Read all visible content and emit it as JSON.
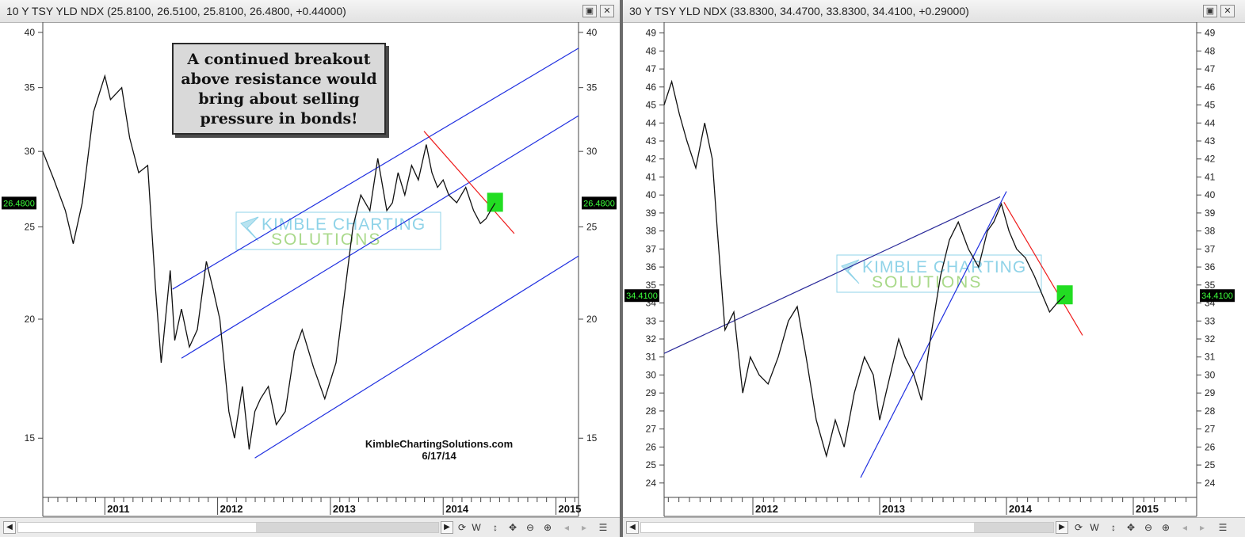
{
  "left_panel": {
    "title": "10 Y TSY YLD NDX",
    "ohlc": "(25.8100, 26.5100, 25.8100, 26.4800, +0.44000)",
    "price_tag": "26.4800",
    "callout_lines": [
      "A continued breakout",
      "above resistance would",
      "bring about selling",
      "pressure in bonds!"
    ],
    "watermark_line1": "KIMBLE CHARTING",
    "watermark_line2": "SOLUTIONS",
    "site": "KimbleChartingSolutions.com",
    "date": "6/17/14",
    "timeframe_label": "W"
  },
  "right_panel": {
    "title": "30 Y TSY YLD NDX",
    "ohlc": "(33.8300, 34.4700, 33.8300, 34.4100, +0.29000)",
    "price_tag": "34.4100",
    "watermark_line1": "KIMBLE CHARTING",
    "watermark_line2": "SOLUTIONS",
    "timeframe_label": "W"
  },
  "colors": {
    "price_line": "#111111",
    "channel": "#1f2fe0",
    "resistance": "#ee1c1c",
    "highlight": "#22dd22",
    "watermark": "#2aa8c8",
    "watermark_green": "#7cc24a"
  },
  "chart_data": [
    {
      "type": "line",
      "title": "10 Y TSY YLD NDX",
      "scale": "log",
      "x_range": [
        2010.45,
        2015.2
      ],
      "ylim": [
        13,
        41
      ],
      "y_ticks": [
        15,
        20,
        25,
        30,
        35,
        40
      ],
      "x_ticks": [
        "2011",
        "2012",
        "2013",
        "2014",
        "2015"
      ],
      "last_value": 26.48,
      "series": [
        {
          "x": [
            2010.45,
            2010.55,
            2010.65,
            2010.72,
            2010.8,
            2010.9,
            2011.0,
            2011.05,
            2011.15,
            2011.22,
            2011.3,
            2011.38,
            2011.45,
            2011.5,
            2011.58,
            2011.62,
            2011.68,
            2011.75,
            2011.82,
            2011.9,
            2011.96,
            2012.02,
            2012.1,
            2012.15,
            2012.22,
            2012.28,
            2012.33,
            2012.38,
            2012.45,
            2012.52,
            2012.6,
            2012.68,
            2012.75,
            2012.85,
            2012.95,
            2013.05,
            2013.12,
            2013.2,
            2013.27,
            2013.35,
            2013.42,
            2013.5,
            2013.55,
            2013.6,
            2013.66,
            2013.72,
            2013.78,
            2013.85,
            2013.9,
            2013.95,
            2014.0,
            2014.05,
            2014.12,
            2014.2,
            2014.27,
            2014.33,
            2014.38,
            2014.42,
            2014.46
          ],
          "y": [
            30,
            28,
            26,
            24,
            26.5,
            33,
            36,
            34,
            35,
            31,
            28.5,
            29,
            21.5,
            18,
            22.5,
            19,
            20.5,
            18.7,
            19.5,
            23,
            21.5,
            20,
            16,
            15,
            17,
            14.6,
            16,
            16.5,
            17,
            15.5,
            16,
            18.5,
            19.5,
            17.8,
            16.5,
            18,
            21,
            25,
            27,
            26,
            29.5,
            26,
            26.5,
            28.5,
            27,
            29,
            28,
            30.5,
            28.5,
            27.5,
            28,
            27,
            26.5,
            27.5,
            26,
            25.2,
            25.5,
            26,
            26.48
          ]
        }
      ],
      "trendlines": [
        {
          "name": "channel top",
          "color": "blue",
          "points": [
            [
              2011.6,
              21.5
            ],
            [
              2015.2,
              38.5
            ]
          ]
        },
        {
          "name": "channel middle",
          "color": "blue",
          "points": [
            [
              2011.68,
              18.2
            ],
            [
              2015.2,
              32.7
            ]
          ]
        },
        {
          "name": "channel bottom",
          "color": "blue",
          "points": [
            [
              2012.33,
              14.3
            ],
            [
              2015.2,
              23.3
            ]
          ]
        },
        {
          "name": "resistance",
          "color": "red",
          "points": [
            [
              2013.83,
              31.5
            ],
            [
              2014.63,
              24.6
            ]
          ]
        }
      ]
    },
    {
      "type": "line",
      "title": "30 Y TSY YLD NDX",
      "scale": "linear",
      "x_range": [
        2011.3,
        2015.5
      ],
      "ylim": [
        23.2,
        49.6
      ],
      "y_ticks": [
        24,
        25,
        26,
        27,
        28,
        29,
        30,
        31,
        32,
        33,
        34,
        35,
        36,
        37,
        38,
        39,
        40,
        41,
        42,
        43,
        44,
        45,
        46,
        47,
        48,
        49
      ],
      "x_ticks": [
        "2012",
        "2013",
        "2014",
        "2015"
      ],
      "last_value": 34.41,
      "series": [
        {
          "x": [
            2011.3,
            2011.36,
            2011.42,
            2011.48,
            2011.55,
            2011.62,
            2011.68,
            2011.72,
            2011.78,
            2011.85,
            2011.92,
            2011.98,
            2012.05,
            2012.12,
            2012.2,
            2012.28,
            2012.35,
            2012.42,
            2012.5,
            2012.58,
            2012.65,
            2012.72,
            2012.8,
            2012.88,
            2012.95,
            2013.0,
            2013.05,
            2013.1,
            2013.15,
            2013.2,
            2013.27,
            2013.33,
            2013.4,
            2013.48,
            2013.55,
            2013.62,
            2013.7,
            2013.78,
            2013.85,
            2013.9,
            2013.96,
            2014.02,
            2014.08,
            2014.15,
            2014.22,
            2014.28,
            2014.34,
            2014.4,
            2014.46
          ],
          "y": [
            45,
            46.3,
            44.5,
            43,
            41.5,
            44,
            42,
            38,
            32.5,
            33.5,
            29,
            31,
            30,
            29.5,
            31,
            33,
            33.8,
            31,
            27.5,
            25.5,
            27.5,
            26,
            29,
            31,
            30,
            27.5,
            29,
            30.5,
            32,
            31,
            30,
            28.6,
            32,
            35.5,
            37.5,
            38.5,
            37,
            36,
            38,
            38.5,
            39.5,
            38,
            37,
            36.5,
            35.5,
            34.5,
            33.5,
            34,
            34.41
          ]
        }
      ],
      "trendlines": [
        {
          "name": "resistance line",
          "color": "navy",
          "points": [
            [
              2011.3,
              31.2
            ],
            [
              2013.95,
              39.9
            ]
          ]
        },
        {
          "name": "support line",
          "color": "blue",
          "points": [
            [
              2012.85,
              24.3
            ],
            [
              2014.0,
              40.2
            ]
          ]
        },
        {
          "name": "downtrend",
          "color": "red",
          "points": [
            [
              2013.98,
              39.6
            ],
            [
              2014.6,
              32.2
            ]
          ]
        }
      ]
    }
  ]
}
